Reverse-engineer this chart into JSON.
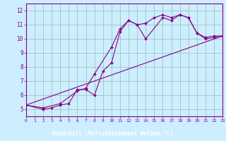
{
  "title": "",
  "xlabel": "Windchill (Refroidissement éolien,°C)",
  "background_color": "#cceeff",
  "line_color": "#880088",
  "label_bar_color": "#880088",
  "label_text_color": "#ffffff",
  "tick_color": "#880088",
  "xlim": [
    0,
    23
  ],
  "ylim": [
    4.5,
    12.5
  ],
  "xticks": [
    0,
    1,
    2,
    3,
    4,
    5,
    6,
    7,
    8,
    9,
    10,
    11,
    12,
    13,
    14,
    15,
    16,
    17,
    18,
    19,
    20,
    21,
    22,
    23
  ],
  "yticks": [
    5,
    6,
    7,
    8,
    9,
    10,
    11,
    12
  ],
  "grid_color": "#99bbaa",
  "series": [
    {
      "x": [
        0,
        2,
        3,
        4,
        5,
        6,
        7,
        8,
        9,
        10,
        11,
        12,
        13,
        14,
        15,
        16,
        17,
        18,
        19,
        20,
        21,
        22,
        23
      ],
      "y": [
        5.3,
        5.0,
        5.1,
        5.3,
        5.4,
        6.4,
        6.4,
        6.0,
        7.7,
        8.3,
        10.5,
        11.3,
        11.0,
        11.1,
        11.5,
        11.7,
        11.5,
        11.7,
        11.5,
        10.4,
        10.1,
        10.2,
        10.2
      ],
      "marker": true
    },
    {
      "x": [
        0,
        2,
        4,
        6,
        7,
        8,
        10,
        11,
        12,
        13,
        14,
        16,
        17,
        18,
        19,
        20,
        21,
        22,
        23
      ],
      "y": [
        5.3,
        5.1,
        5.4,
        6.3,
        6.5,
        7.5,
        9.4,
        10.7,
        11.3,
        11.0,
        10.0,
        11.5,
        11.3,
        11.7,
        11.5,
        10.4,
        10.0,
        10.1,
        10.2
      ],
      "marker": true
    },
    {
      "x": [
        0,
        23
      ],
      "y": [
        5.3,
        10.2
      ],
      "marker": false
    }
  ]
}
